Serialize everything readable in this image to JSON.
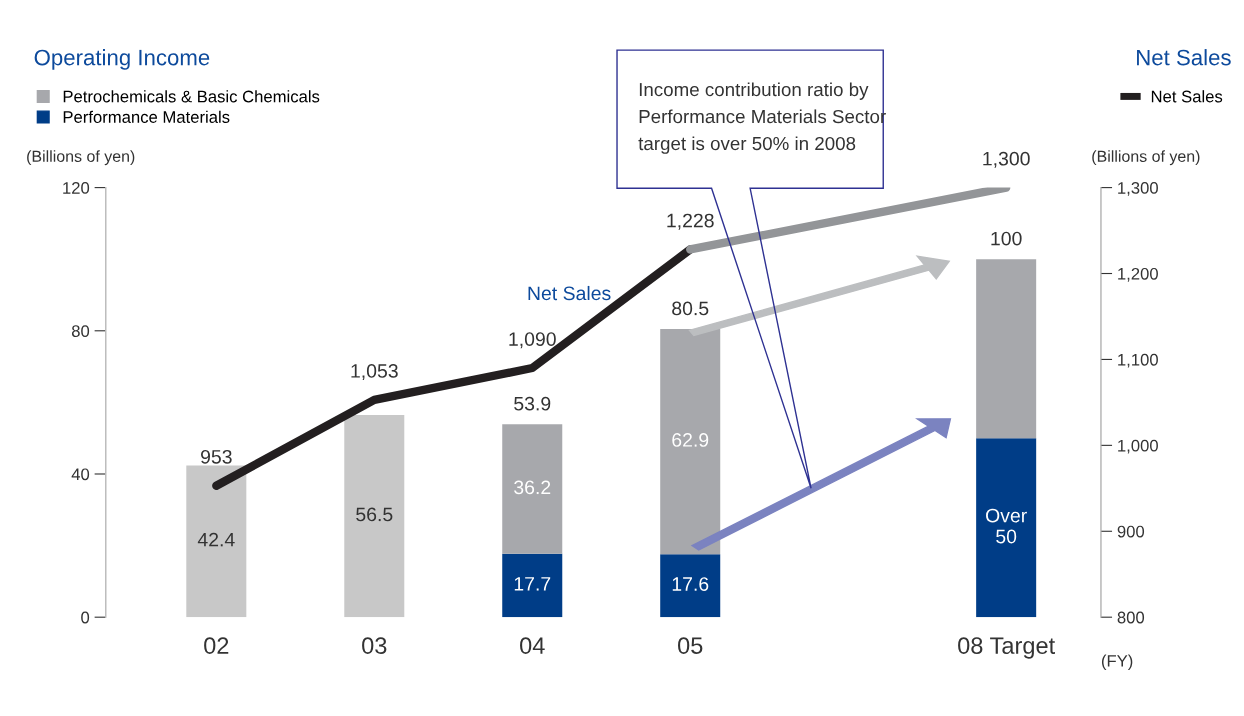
{
  "chart_data": {
    "type": "bar",
    "stacked": true,
    "categories": [
      "02",
      "03",
      "04",
      "05",
      null,
      "08 Target"
    ],
    "ylabel": "(Billions of yen)",
    "y2label": "(Billions of yen)",
    "xlabel": "(FY)",
    "ylim": [
      0,
      120
    ],
    "yticks": [
      0,
      40,
      80,
      120
    ],
    "y2lim": [
      800,
      1300
    ],
    "y2ticks": [
      {
        "value": 800,
        "label": "800"
      },
      {
        "value": 900,
        "label": "900"
      },
      {
        "value": 1000,
        "label": "1,000"
      },
      {
        "value": 1100,
        "label": "1,100"
      },
      {
        "value": 1200,
        "label": "1,200"
      },
      {
        "value": 1300,
        "label": "1,300"
      }
    ],
    "series": [
      {
        "color": "#c8c8c8",
        "values": [
          42.4,
          56.5,
          null,
          null,
          null,
          null
        ],
        "value_labels": [
          "42.4",
          "56.5",
          null,
          null,
          null,
          null
        ]
      },
      {
        "name": "Performance Materials",
        "color": "#003d87",
        "values": [
          null,
          null,
          17.7,
          17.6,
          null,
          50
        ],
        "value_labels": [
          null,
          null,
          "17.7",
          "17.6",
          null,
          "Over\n50"
        ]
      },
      {
        "name": "Petrochemicals & Basic Chemicals",
        "color": "#a7a8ac",
        "values": [
          null,
          null,
          36.2,
          62.9,
          null,
          50
        ],
        "value_labels": [
          null,
          null,
          "36.2",
          "62.9",
          null,
          null
        ]
      },
      {
        "type": "line",
        "axis": "y2",
        "name": "Net Sales",
        "color": "#231f20",
        "values": [
          953,
          1053,
          1090,
          1228,
          null,
          null
        ],
        "value_labels": [
          "953",
          "1,053",
          "1,090",
          "1,228",
          null,
          null
        ]
      },
      {
        "type": "line",
        "axis": "y2",
        "color": "#939598",
        "values": [
          null,
          null,
          null,
          1228,
          null,
          1300
        ],
        "value_labels": [
          null,
          null,
          null,
          null,
          null,
          "1,300"
        ]
      }
    ],
    "totals": [
      null,
      null,
      "53.9",
      "80.5",
      null,
      "100"
    ],
    "legend": "top left",
    "grid": false,
    "annotations": [
      "Operating Income",
      "Net Sales",
      "Net Sales",
      "Income contribution ratio by\nPerformance Materials Sector\ntarget is over 50% in 2008"
    ]
  }
}
